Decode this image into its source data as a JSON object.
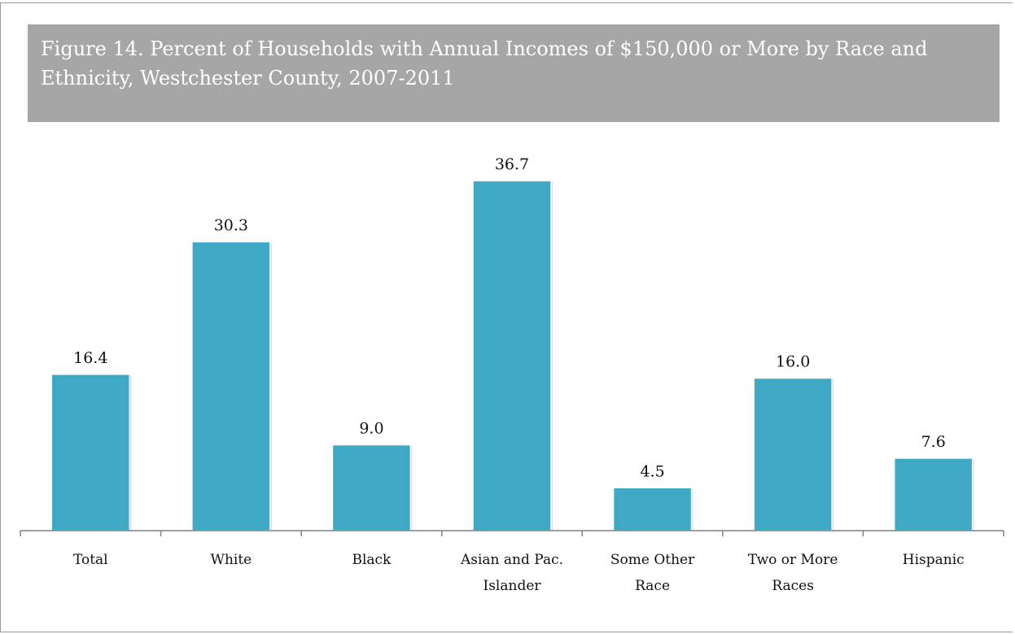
{
  "title": "Figure 14. Percent of Households with Annual Incomes of $150,000 or More by Race and Ethnicity, Westchester County, 2007-2011",
  "colors": {
    "bar": "#3fa9c5",
    "title_bg": "#a6a6a6",
    "axis": "#808080"
  },
  "chart_data": {
    "type": "bar",
    "title": "Figure 14. Percent of Households with Annual Incomes of $150,000 or More by Race and Ethnicity, Westchester County, 2007-2011",
    "categories": [
      "Total",
      "White",
      "Black",
      "Asian and Pac. Islander",
      "Some Other Race",
      "Two or More Races",
      "Hispanic"
    ],
    "category_lines": [
      [
        "Total"
      ],
      [
        "White"
      ],
      [
        "Black"
      ],
      [
        "Asian and Pac.",
        "Islander"
      ],
      [
        "Some Other",
        "Race"
      ],
      [
        "Two or More",
        "Races"
      ],
      [
        "Hispanic"
      ]
    ],
    "values": [
      16.4,
      30.3,
      9.0,
      36.7,
      4.5,
      16.0,
      7.6
    ],
    "value_labels": [
      "16.4",
      "30.3",
      "9.0",
      "36.7",
      "4.5",
      "16.0",
      "7.6"
    ],
    "xlabel": "",
    "ylabel": "",
    "ylim": [
      0,
      36.7
    ],
    "grid": false,
    "legend": "none"
  }
}
